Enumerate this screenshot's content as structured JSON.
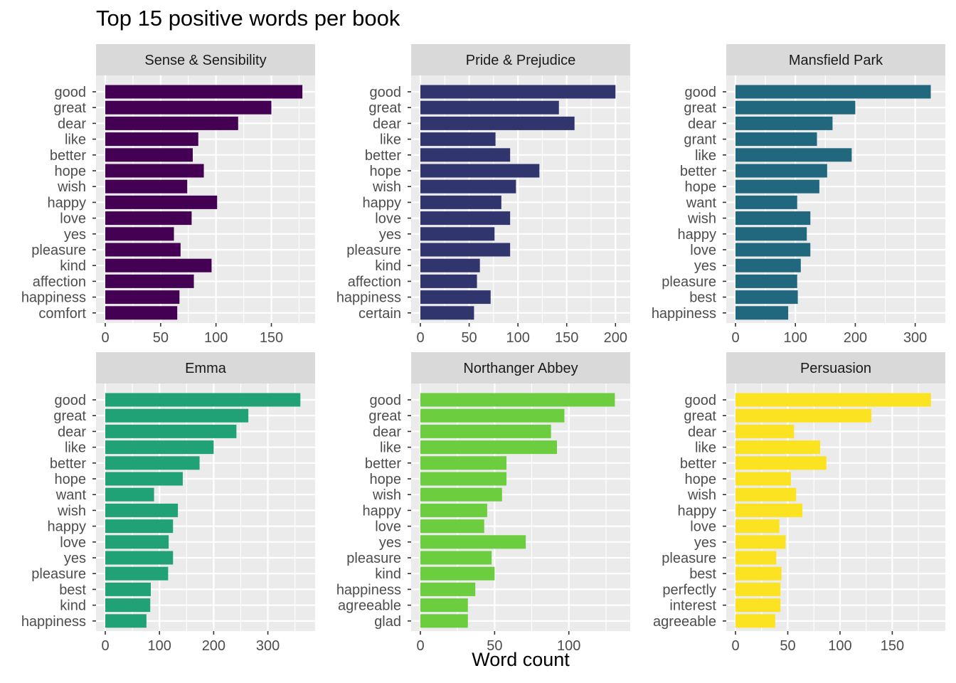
{
  "title": "Top 15 positive words per book",
  "xlabel": "Word count",
  "chart_data": [
    {
      "type": "bar",
      "orientation": "horizontal",
      "panel": "Sense & Sensibility",
      "color": "#440154",
      "xlim": [
        0,
        185
      ],
      "xticks": [
        0,
        50,
        100,
        150
      ],
      "categories": [
        "good",
        "great",
        "dear",
        "like",
        "better",
        "hope",
        "wish",
        "happy",
        "love",
        "yes",
        "pleasure",
        "kind",
        "affection",
        "happiness",
        "comfort"
      ],
      "values": [
        178,
        150,
        120,
        84,
        79,
        89,
        74,
        101,
        78,
        62,
        68,
        96,
        80,
        67,
        65
      ]
    },
    {
      "type": "bar",
      "orientation": "horizontal",
      "panel": "Pride & Prejudice",
      "color": "#31356e",
      "xlim": [
        0,
        210
      ],
      "xticks": [
        0,
        50,
        100,
        150,
        200
      ],
      "categories": [
        "good",
        "great",
        "dear",
        "like",
        "better",
        "hope",
        "wish",
        "happy",
        "love",
        "yes",
        "pleasure",
        "kind",
        "affection",
        "happiness",
        "certain"
      ],
      "values": [
        200,
        142,
        158,
        77,
        92,
        122,
        98,
        83,
        92,
        76,
        92,
        61,
        58,
        72,
        55
      ]
    },
    {
      "type": "bar",
      "orientation": "horizontal",
      "panel": "Mansfield Park",
      "color": "#21677d",
      "xlim": [
        0,
        342
      ],
      "xticks": [
        0,
        100,
        200,
        300
      ],
      "categories": [
        "good",
        "great",
        "dear",
        "grant",
        "like",
        "better",
        "hope",
        "want",
        "wish",
        "happy",
        "love",
        "yes",
        "pleasure",
        "best",
        "happiness"
      ],
      "values": [
        326,
        200,
        162,
        136,
        194,
        153,
        140,
        103,
        125,
        119,
        125,
        109,
        103,
        104,
        88
      ]
    },
    {
      "type": "bar",
      "orientation": "horizontal",
      "panel": "Emma",
      "color": "#21a176",
      "xlim": [
        0,
        378
      ],
      "xticks": [
        0,
        100,
        200,
        300
      ],
      "categories": [
        "good",
        "great",
        "dear",
        "like",
        "better",
        "hope",
        "want",
        "wish",
        "happy",
        "love",
        "yes",
        "pleasure",
        "best",
        "kind",
        "happiness"
      ],
      "values": [
        360,
        264,
        242,
        200,
        174,
        143,
        90,
        134,
        125,
        117,
        125,
        116,
        84,
        83,
        76
      ]
    },
    {
      "type": "bar",
      "orientation": "horizontal",
      "panel": "Northanger Abbey",
      "color": "#6ccd3e",
      "xlim": [
        0,
        138
      ],
      "xticks": [
        0,
        50,
        100
      ],
      "categories": [
        "good",
        "great",
        "dear",
        "like",
        "better",
        "hope",
        "wish",
        "happy",
        "love",
        "yes",
        "pleasure",
        "kind",
        "happiness",
        "agreeable",
        "glad"
      ],
      "values": [
        131,
        97,
        88,
        92,
        58,
        58,
        55,
        45,
        43,
        71,
        48,
        50,
        37,
        32,
        32
      ]
    },
    {
      "type": "bar",
      "orientation": "horizontal",
      "panel": "Persuasion",
      "color": "#fbe322",
      "xlim": [
        0,
        196
      ],
      "xticks": [
        0,
        50,
        100,
        150
      ],
      "categories": [
        "good",
        "great",
        "dear",
        "like",
        "better",
        "hope",
        "wish",
        "happy",
        "love",
        "yes",
        "pleasure",
        "best",
        "perfectly",
        "interest",
        "agreeable"
      ],
      "values": [
        187,
        130,
        56,
        81,
        87,
        53,
        58,
        64,
        42,
        48,
        39,
        44,
        43,
        43,
        38
      ]
    }
  ]
}
